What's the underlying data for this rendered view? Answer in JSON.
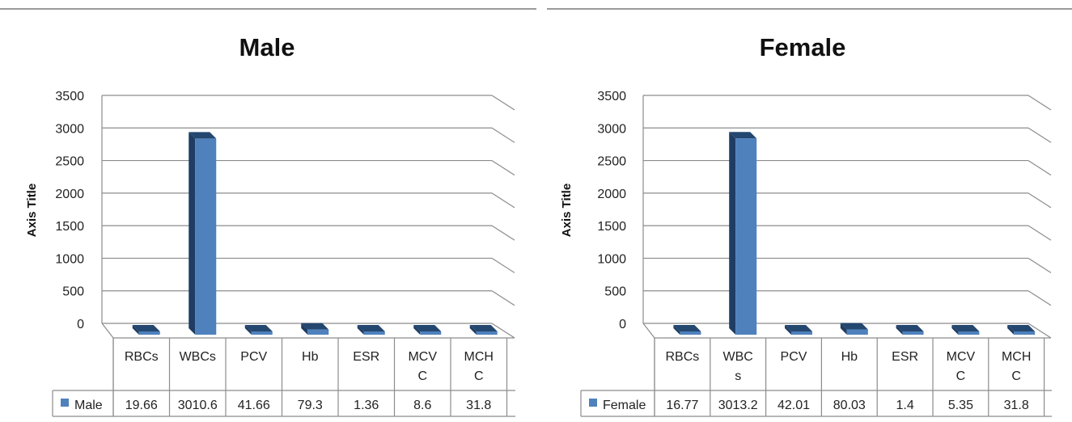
{
  "chart_data": [
    {
      "type": "bar",
      "title": "Male",
      "xlabel": "",
      "ylabel": "Axis Title",
      "ylim": [
        0,
        3500
      ],
      "yticks": [
        0,
        500,
        1000,
        1500,
        2000,
        2500,
        3000,
        3500
      ],
      "categories": [
        "RBCs",
        "WBCs",
        "PCV",
        "Hb",
        "ESR",
        "MCV\nC",
        "MCH\nC"
      ],
      "category_lines": [
        [
          "RBCs"
        ],
        [
          "WBCs"
        ],
        [
          "PCV"
        ],
        [
          "Hb"
        ],
        [
          "ESR"
        ],
        [
          "MCV",
          "C"
        ],
        [
          "MCH",
          "C"
        ]
      ],
      "series": [
        {
          "name": "Male",
          "values": [
            19.66,
            3010.6,
            41.66,
            79.3,
            1.36,
            8.6,
            31.8
          ],
          "value_labels": [
            "19.66",
            "3010.6",
            "41.66",
            "79.3",
            "1.36",
            "8.6",
            "31.8"
          ]
        }
      ],
      "legend": "data-table",
      "grid": true,
      "style": "3d-column",
      "colors": {
        "bar_front": "#4f81bd",
        "bar_side": "#1f3d64",
        "bar_top": "#24476f"
      }
    },
    {
      "type": "bar",
      "title": "Female",
      "xlabel": "",
      "ylabel": "Axis Title",
      "ylim": [
        0,
        3500
      ],
      "yticks": [
        0,
        500,
        1000,
        1500,
        2000,
        2500,
        3000,
        3500
      ],
      "categories": [
        "RBCs",
        "WBC\ns",
        "PCV",
        "Hb",
        "ESR",
        "MCV\nC",
        "MCH\nC"
      ],
      "category_lines": [
        [
          "RBCs"
        ],
        [
          "WBC",
          "s"
        ],
        [
          "PCV"
        ],
        [
          "Hb"
        ],
        [
          "ESR"
        ],
        [
          "MCV",
          "C"
        ],
        [
          "MCH",
          "C"
        ]
      ],
      "series": [
        {
          "name": "Female",
          "values": [
            16.77,
            3013.2,
            42.01,
            80.03,
            1.4,
            5.35,
            31.8
          ],
          "value_labels": [
            "16.77",
            "3013.2",
            "42.01",
            "80.03",
            "1.4",
            "5.35",
            "31.8"
          ]
        }
      ],
      "legend": "data-table",
      "grid": true,
      "style": "3d-column",
      "colors": {
        "bar_front": "#4f81bd",
        "bar_side": "#1f3d64",
        "bar_top": "#24476f"
      }
    }
  ]
}
